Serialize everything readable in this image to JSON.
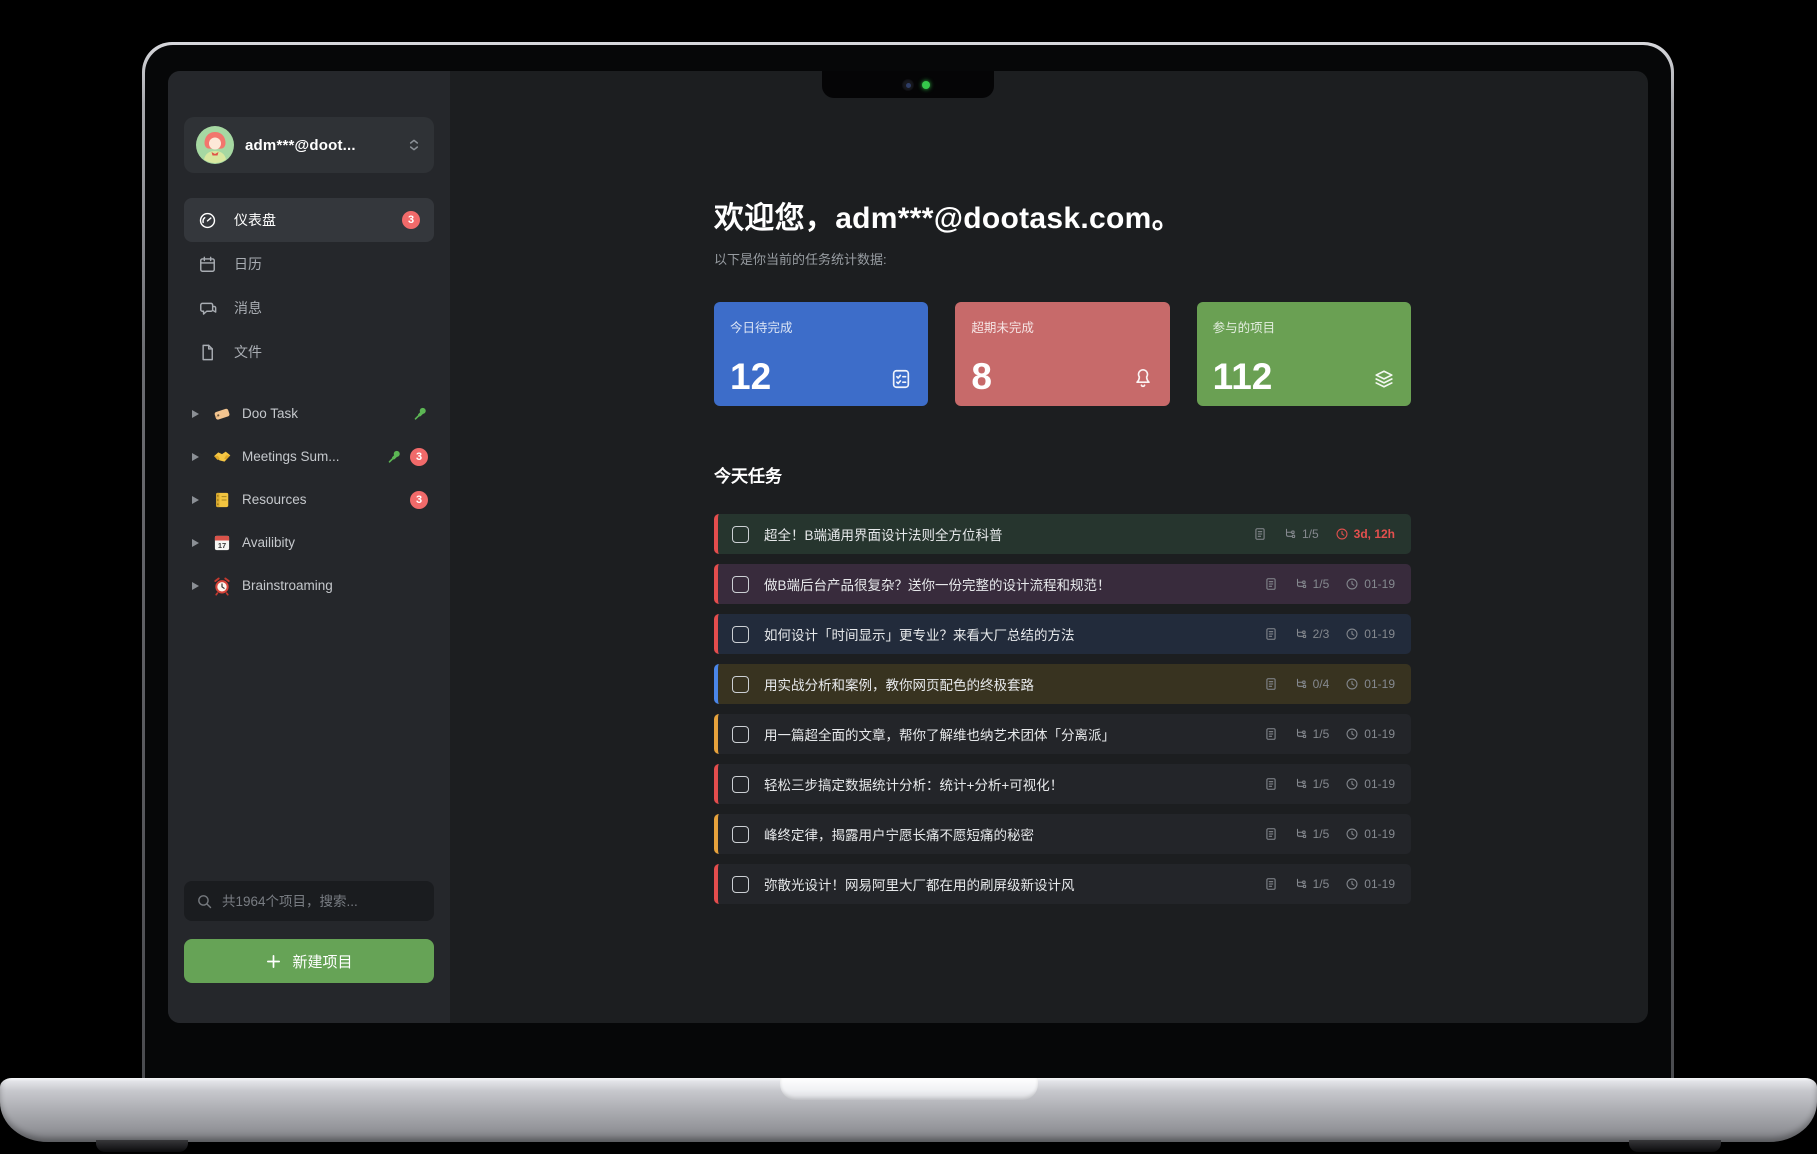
{
  "sidebar": {
    "account": {
      "name": "adm***@doot...",
      "avatar_icon": "avatar",
      "chevron_icon": "chevron-updown-icon"
    },
    "nav": [
      {
        "icon": "gauge-icon",
        "label": "仪表盘",
        "badge": "3",
        "active": true
      },
      {
        "icon": "calendar-icon",
        "label": "日历",
        "badge": "",
        "active": false
      },
      {
        "icon": "chat-icon",
        "label": "消息",
        "badge": "",
        "active": false
      },
      {
        "icon": "file-icon",
        "label": "文件",
        "badge": "",
        "active": false
      }
    ],
    "projects": [
      {
        "icon": "tag-emoji-icon",
        "name": "Doo Task",
        "pinned": true,
        "badge": ""
      },
      {
        "icon": "handshake-emoji-icon",
        "name": "Meetings Sum...",
        "pinned": true,
        "badge": "3"
      },
      {
        "icon": "notebook-emoji-icon",
        "name": "Resources",
        "pinned": false,
        "badge": "3"
      },
      {
        "icon": "calendar-emoji-icon",
        "name": "Availibity",
        "pinned": false,
        "badge": ""
      },
      {
        "icon": "alarm-emoji-icon",
        "name": "Brainstroaming",
        "pinned": false,
        "badge": ""
      }
    ],
    "search": {
      "placeholder": "共1964个项目，搜索...",
      "icon": "search-icon"
    },
    "new_project": {
      "label": "新建项目",
      "icon": "plus-icon",
      "color": "#66a356"
    }
  },
  "main": {
    "welcome_title": "欢迎您，adm***@dootask.com。",
    "subtitle": "以下是你当前的任务统计数据:",
    "stats": [
      {
        "label": "今日待完成",
        "value": "12",
        "color": "#3d6dc9",
        "icon": "checklist-icon"
      },
      {
        "label": "超期未完成",
        "value": "8",
        "color": "#c76a6a",
        "icon": "bell-icon"
      },
      {
        "label": "参与的项目",
        "value": "112",
        "color": "#6aa053",
        "icon": "layers-icon"
      }
    ],
    "tasks_section_title": "今天任务",
    "tasks": [
      {
        "title": "超全！B端通用界面设计法则全方位科普",
        "progress": "1/5",
        "due": "3d, 12h",
        "overdue": true,
        "accent": "#e34d4d",
        "bg": "#26352e"
      },
      {
        "title": "做B端后台产品很复杂？送你一份完整的设计流程和规范！",
        "progress": "1/5",
        "due": "01-19",
        "overdue": false,
        "accent": "#e34d4d",
        "bg": "#382b3c"
      },
      {
        "title": "如何设计「时间显示」更专业？来看大厂总结的方法",
        "progress": "2/3",
        "due": "01-19",
        "overdue": false,
        "accent": "#e34d4d",
        "bg": "#222b3b"
      },
      {
        "title": "用实战分析和案例，教你网页配色的终极套路",
        "progress": "0/4",
        "due": "01-19",
        "overdue": false,
        "accent": "#4a86e8",
        "bg": "#383320"
      },
      {
        "title": "用一篇超全面的文章，帮你了解维也纳艺术团体「分离派」",
        "progress": "1/5",
        "due": "01-19",
        "overdue": false,
        "accent": "#e6a23c",
        "bg": "#232529"
      },
      {
        "title": "轻松三步搞定数据统计分析：统计+分析+可视化！",
        "progress": "1/5",
        "due": "01-19",
        "overdue": false,
        "accent": "#e34d4d",
        "bg": "#232529"
      },
      {
        "title": "峰终定律，揭露用户宁愿长痛不愿短痛的秘密",
        "progress": "1/5",
        "due": "01-19",
        "overdue": false,
        "accent": "#e6a23c",
        "bg": "#232529"
      },
      {
        "title": "弥散光设计！网易阿里大厂都在用的刷屏级新设计风",
        "progress": "1/5",
        "due": "01-19",
        "overdue": false,
        "accent": "#e34d4d",
        "bg": "#232529"
      }
    ],
    "task_meta_icons": [
      "file-text-icon",
      "subtasks-icon",
      "clock-icon"
    ]
  }
}
